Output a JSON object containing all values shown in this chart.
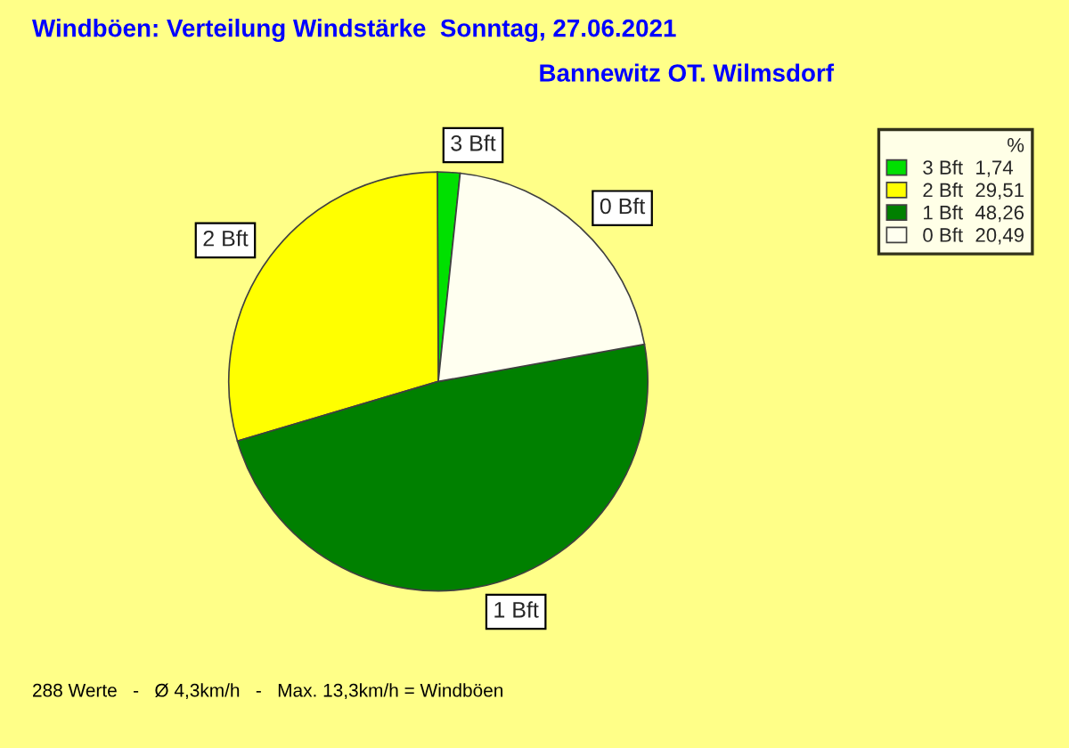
{
  "chart_data": {
    "type": "pie",
    "title": "Windböen: Verteilung Windstärke  Sonntag, 27.06.2021",
    "subtitle": "Bannewitz OT. Wilmsdorf",
    "categories": [
      "3 Bft",
      "2 Bft",
      "1 Bft",
      "0 Bft"
    ],
    "values": [
      1.74,
      29.51,
      48.26,
      20.49
    ],
    "value_labels": [
      "1,74",
      "29,51",
      "48,26",
      "20,49"
    ],
    "colors": [
      "#00e000",
      "#ffff00",
      "#008000",
      "#fffff0"
    ],
    "legend_title": "%",
    "legend": "top right",
    "annotations": [
      "288 Werte   -   Ø 4,3km/h   -   Max. 13,3km/h = Windböen"
    ]
  }
}
